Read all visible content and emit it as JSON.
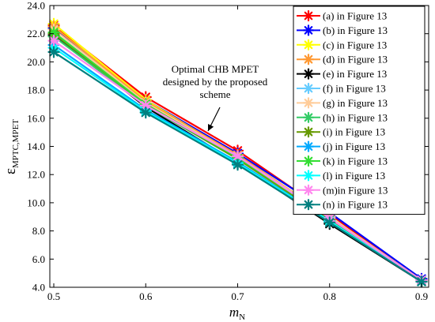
{
  "chart_data": {
    "type": "line",
    "title": "",
    "xlabel_main": "m",
    "xlabel_sub": "N",
    "ylabel_main": "ε",
    "ylabel_sub": "MPTC,MPET",
    "xlim": [
      0.5,
      0.9
    ],
    "ylim": [
      4.0,
      24.0
    ],
    "x": [
      0.5,
      0.6,
      0.7,
      0.8,
      0.9
    ],
    "xticks": [
      0.5,
      0.6,
      0.7,
      0.8,
      0.9
    ],
    "xtick_labels": [
      "0.5",
      "0.6",
      "0.7",
      "0.8",
      "0.9"
    ],
    "yticks": [
      4,
      6,
      8,
      10,
      12,
      14,
      16,
      18,
      20,
      22,
      24
    ],
    "ytick_labels": [
      "4.0",
      "6.0",
      "8.0",
      "10.0",
      "12.0",
      "14.0",
      "16.0",
      "18.0",
      "20.0",
      "22.0",
      "24.0"
    ],
    "grid": false,
    "legend_position": "top-right",
    "marker": "asterisk",
    "series": [
      {
        "name": "(a)  in Figure 13",
        "color": "#ff0000",
        "values": [
          22.6,
          17.5,
          13.7,
          9.2,
          4.5
        ]
      },
      {
        "name": "(b)  in Figure 13",
        "color": "#0000ff",
        "values": [
          22.4,
          17.3,
          13.5,
          9.3,
          4.6
        ]
      },
      {
        "name": "(c)  in Figure 13",
        "color": "#ffff00",
        "values": [
          22.7,
          17.3,
          13.3,
          9.0,
          4.5
        ]
      },
      {
        "name": "(d)  in Figure 13",
        "color": "#ff9933",
        "values": [
          22.5,
          17.2,
          13.4,
          9.0,
          4.5
        ]
      },
      {
        "name": "(e)  in Figure 13",
        "color": "#000000",
        "values": [
          21.9,
          16.8,
          12.8,
          8.5,
          4.4
        ]
      },
      {
        "name": "(f)  in Figure 13",
        "color": "#66ccff",
        "values": [
          22.0,
          17.0,
          13.2,
          8.9,
          4.5
        ]
      },
      {
        "name": "(g)  in Figure 13",
        "color": "#ffcc99",
        "values": [
          22.3,
          17.1,
          13.3,
          9.0,
          4.5
        ]
      },
      {
        "name": "(h)  in Figure 13",
        "color": "#33cc66",
        "values": [
          21.8,
          16.9,
          13.1,
          8.8,
          4.4
        ]
      },
      {
        "name": "(i)  in Figure 13",
        "color": "#669900",
        "values": [
          22.0,
          17.0,
          13.1,
          8.8,
          4.4
        ]
      },
      {
        "name": "(j)  in Figure 13",
        "color": "#00aaff",
        "values": [
          21.2,
          16.6,
          12.9,
          8.7,
          4.4
        ]
      },
      {
        "name": "(k)  in Figure 13",
        "color": "#33dd33",
        "values": [
          22.1,
          17.0,
          13.2,
          8.9,
          4.5
        ]
      },
      {
        "name": "(l)  in Figure 13",
        "color": "#00ffff",
        "values": [
          21.0,
          16.5,
          12.8,
          8.7,
          4.4
        ]
      },
      {
        "name": "(m)in Figure 13",
        "color": "#ff88ee",
        "values": [
          21.5,
          16.9,
          13.3,
          8.9,
          4.5
        ]
      },
      {
        "name": "(n)  in Figure 13",
        "color": "#008080",
        "values": [
          20.7,
          16.4,
          12.7,
          8.6,
          4.4
        ]
      }
    ],
    "annotation": {
      "lines": [
        "Optimal CHB MPET",
        "designed by the proposed",
        "scheme"
      ],
      "target_x": 0.7,
      "target_y": 13.6
    }
  }
}
